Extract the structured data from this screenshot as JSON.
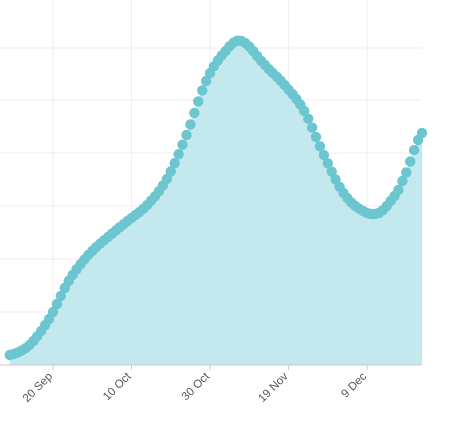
{
  "chart_data": {
    "type": "area",
    "title": "",
    "xlabel": "",
    "ylabel": "",
    "x_tick_labels": [
      "20 Sep",
      "10 Oct",
      "30 Oct",
      "19 Nov",
      "9 Dec"
    ],
    "x_tick_days": [
      11,
      31,
      51,
      71,
      91
    ],
    "grid": true,
    "legend": "none",
    "colors": {
      "fill": "#c3e8ee",
      "line_marker": "#6cc6d0",
      "grid": "#eeeeee",
      "axis": "#cccccc"
    },
    "series": [
      {
        "x": [
          0,
          5,
          10,
          15,
          20,
          25,
          30,
          35,
          40,
          45,
          50,
          55,
          59,
          65,
          70,
          75,
          80,
          85,
          90,
          94,
          97,
          100,
          105
        ],
        "y": [
          5,
          10,
          23,
          42,
          55,
          64,
          72,
          80,
          93,
          115,
          142,
          157,
          162,
          150,
          140,
          127,
          105,
          86,
          77,
          76,
          82,
          92,
          116
        ]
      }
    ],
    "ylim": [
      0,
      170
    ]
  }
}
